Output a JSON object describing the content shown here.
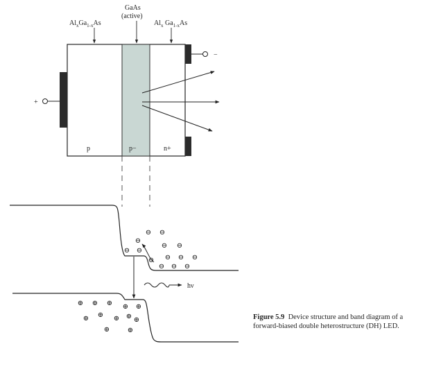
{
  "labels": {
    "left_cladding": {
      "sym1": "Al",
      "sub1": "x",
      "sym2": "Ga",
      "sub2": "1-x",
      "sym3": "As"
    },
    "active_top": "GaAs",
    "active_bottom": "(active)",
    "right_cladding": {
      "sym1": "Al",
      "sub1": "x",
      "sym2": " Ga",
      "sub2": "1-x",
      "sym3": "As"
    },
    "plus_terminal": "+",
    "minus_terminal": "−",
    "region_p": "p",
    "region_p_minus": "p−",
    "region_n_plus": "n+",
    "photon": "hν"
  },
  "carriers": {
    "electron_symbol": "⊖",
    "hole_symbol": "⊕"
  },
  "caption": {
    "figure_label": "Figure 5.9",
    "text": "Device structure and band diagram of a forward-biased double heterostructure (DH) LED."
  }
}
